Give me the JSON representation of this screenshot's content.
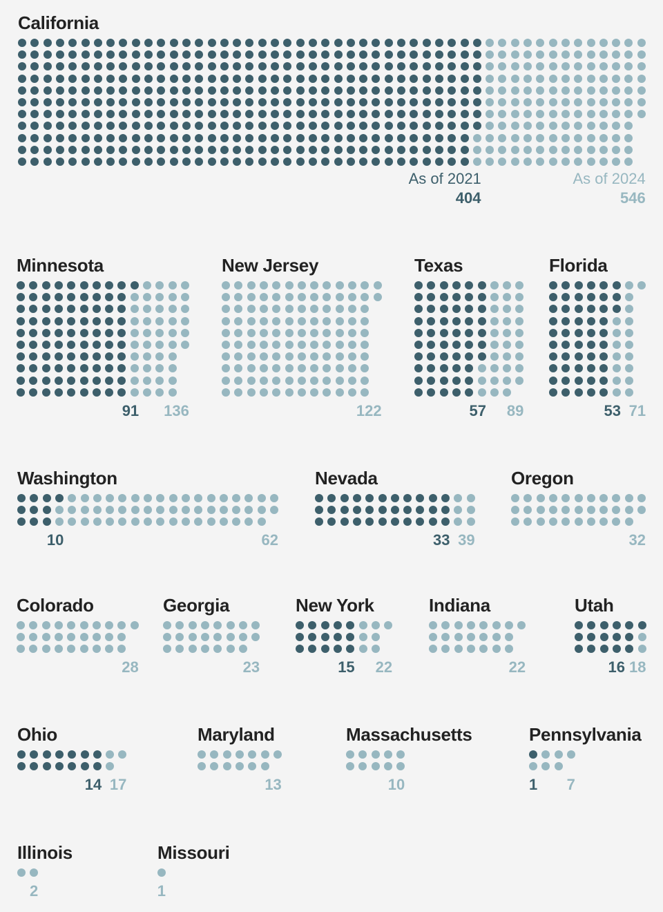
{
  "colors": {
    "as_of_2021": "#3d5f6b",
    "as_of_2024": "#97b7c0",
    "background": "#f4f4f4"
  },
  "chart_data": {
    "type": "dot-matrix",
    "legend": {
      "as_of_2021": "As of 2021",
      "as_of_2024": "As of 2024"
    },
    "states": [
      {
        "name": "California",
        "as_of_2021": 404,
        "as_of_2024": 546,
        "rows": 11
      },
      {
        "name": "Minnesota",
        "as_of_2021": 91,
        "as_of_2024": 136,
        "rows": 10
      },
      {
        "name": "New Jersey",
        "as_of_2021": 0,
        "as_of_2024": 122,
        "rows": 10
      },
      {
        "name": "Texas",
        "as_of_2021": 57,
        "as_of_2024": 89,
        "rows": 10
      },
      {
        "name": "Florida",
        "as_of_2021": 53,
        "as_of_2024": 71,
        "rows": 10
      },
      {
        "name": "Washington",
        "as_of_2021": 10,
        "as_of_2024": 62,
        "rows": 3
      },
      {
        "name": "Nevada",
        "as_of_2021": 33,
        "as_of_2024": 39,
        "rows": 3
      },
      {
        "name": "Oregon",
        "as_of_2021": 0,
        "as_of_2024": 32,
        "rows": 3
      },
      {
        "name": "Colorado",
        "as_of_2021": 0,
        "as_of_2024": 28,
        "rows": 3
      },
      {
        "name": "Georgia",
        "as_of_2021": 0,
        "as_of_2024": 23,
        "rows": 3
      },
      {
        "name": "New York",
        "as_of_2021": 15,
        "as_of_2024": 22,
        "rows": 3
      },
      {
        "name": "Indiana",
        "as_of_2021": 0,
        "as_of_2024": 22,
        "rows": 3
      },
      {
        "name": "Utah",
        "as_of_2021": 16,
        "as_of_2024": 18,
        "rows": 3
      },
      {
        "name": "Ohio",
        "as_of_2021": 14,
        "as_of_2024": 17,
        "rows": 2
      },
      {
        "name": "Maryland",
        "as_of_2021": 0,
        "as_of_2024": 13,
        "rows": 2
      },
      {
        "name": "Massachusetts",
        "as_of_2021": 0,
        "as_of_2024": 10,
        "rows": 2
      },
      {
        "name": "Pennsylvania",
        "as_of_2021": 1,
        "as_of_2024": 7,
        "rows": 2
      },
      {
        "name": "Illinois",
        "as_of_2021": 0,
        "as_of_2024": 2,
        "rows": 1
      },
      {
        "name": "Missouri",
        "as_of_2021": 0,
        "as_of_2024": 1,
        "rows": 1
      }
    ]
  }
}
